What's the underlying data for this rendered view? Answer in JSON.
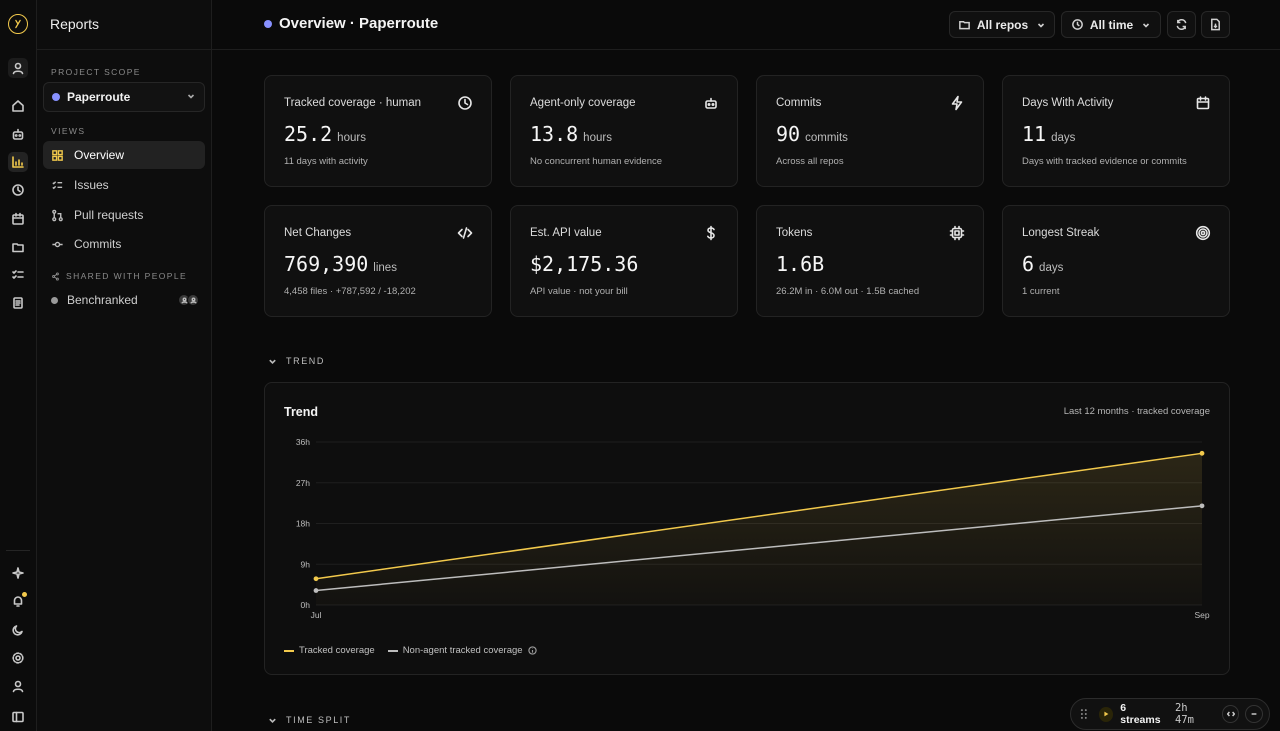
{
  "sidebar": {
    "title": "Reports",
    "project_scope_label": "PROJECT SCOPE",
    "project": "Paperroute",
    "views_label": "VIEWS",
    "views": [
      "Overview",
      "Issues",
      "Pull requests",
      "Commits"
    ],
    "shared_label": "SHARED WITH PEOPLE",
    "shared_item": "Benchranked"
  },
  "header": {
    "title": "Overview · Paperroute",
    "repos_filter": "All repos",
    "time_filter": "All time"
  },
  "cards": [
    {
      "title": "Tracked coverage · human",
      "value": "25.2",
      "unit": "hours",
      "sub": "11 days with activity",
      "icon": "clock-icon"
    },
    {
      "title": "Agent-only coverage",
      "value": "13.8",
      "unit": "hours",
      "sub": "No concurrent human evidence",
      "icon": "robot-icon"
    },
    {
      "title": "Commits",
      "value": "90",
      "unit": "commits",
      "sub": "Across all repos",
      "icon": "lightning-icon"
    },
    {
      "title": "Days With Activity",
      "value": "11",
      "unit": "days",
      "sub": "Days with tracked evidence or commits",
      "icon": "calendar-icon"
    },
    {
      "title": "Net Changes",
      "value": "769,390",
      "unit": "lines",
      "sub": "4,458 files · +787,592 / -18,202",
      "icon": "code-icon"
    },
    {
      "title": "Est. API value",
      "value": "$2,175.36",
      "unit": "",
      "sub": "API value · not your bill",
      "icon": "dollar-icon"
    },
    {
      "title": "Tokens",
      "value": "1.6B",
      "unit": "",
      "sub": "26.2M in · 6.0M out · 1.5B cached",
      "icon": "chip-icon"
    },
    {
      "title": "Longest Streak",
      "value": "6",
      "unit": "days",
      "sub": "1 current",
      "icon": "target-icon"
    }
  ],
  "sections": {
    "trend": "TREND",
    "time_split": "TIME SPLIT"
  },
  "trend": {
    "title": "Trend",
    "meta": "Last 12 months · tracked coverage"
  },
  "chart_data": {
    "type": "area",
    "title": "Trend",
    "x": [
      "Jul",
      "Sep"
    ],
    "yticks": [
      "0h",
      "9h",
      "18h",
      "27h",
      "36h"
    ],
    "ylim": [
      0,
      36
    ],
    "series": [
      {
        "name": "Tracked coverage",
        "values": [
          5.8,
          33.5
        ],
        "color": "#f2c94c"
      },
      {
        "name": "Non-agent tracked coverage",
        "values": [
          3.2,
          21.9
        ],
        "color": "#bdbdbd"
      }
    ],
    "legend": "bottom-left",
    "grid": true
  },
  "player": {
    "streams": "6 streams",
    "time": "2h 47m"
  },
  "colors": {
    "accent": "#f2c94c",
    "project_dot": "#8891ff",
    "background": "#0a0a0a"
  }
}
